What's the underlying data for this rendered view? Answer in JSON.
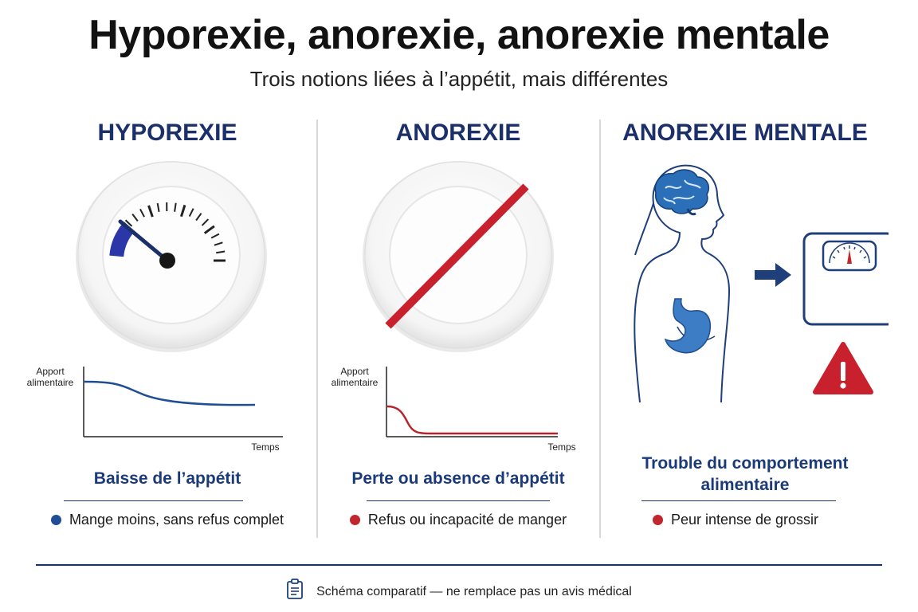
{
  "title": "Hyporexie, anorexie, anorexie mentale",
  "subtitle": "Trois notions liées à l’appétit, mais différentes",
  "columns": [
    {
      "heading": "HYPOREXIE",
      "chart": {
        "ylabel": "Apport\nalimentaire",
        "xlabel": "Temps",
        "line_color": "#1f4e96"
      },
      "caption": "Baisse de l’appétit",
      "bullet": "Mange moins, sans refus complet",
      "bullet_color": "#1f4e96"
    },
    {
      "heading": "ANOREXIE",
      "chart": {
        "ylabel": "Apport\nalimentaire",
        "xlabel": "Temps",
        "line_color": "#c0262b"
      },
      "caption": "Perte ou absence d’appétit",
      "bullet": "Refus ou incapacité de manger",
      "bullet_color": "#c0262b"
    },
    {
      "heading": "ANOREXIE MENTALE",
      "caption": "Trouble du comportement\nalimentaire",
      "bullet": "Peur intense de grossir",
      "bullet_color": "#c0262b"
    }
  ],
  "footer": "Schéma comparatif — ne remplace pas un avis médical",
  "colors": {
    "navy": "#1b2f6b",
    "blue": "#1f4e96",
    "red": "#c0262b"
  }
}
